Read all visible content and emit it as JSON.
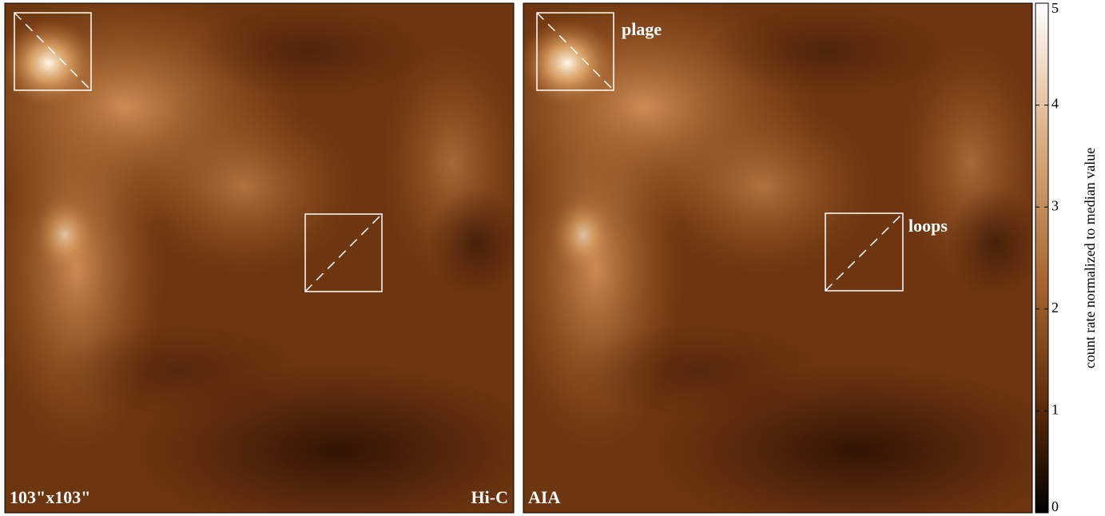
{
  "panels": [
    {
      "corner_left": "103\"x103\"",
      "corner_right": "Hi-C"
    },
    {
      "corner_left": "AIA",
      "labels": [
        "plage",
        "loops"
      ]
    }
  ],
  "colorbar": {
    "label": "count rate normalized to median value",
    "lim": [
      0,
      5
    ],
    "ticks": [
      0,
      1,
      2,
      3,
      4,
      5
    ]
  }
}
